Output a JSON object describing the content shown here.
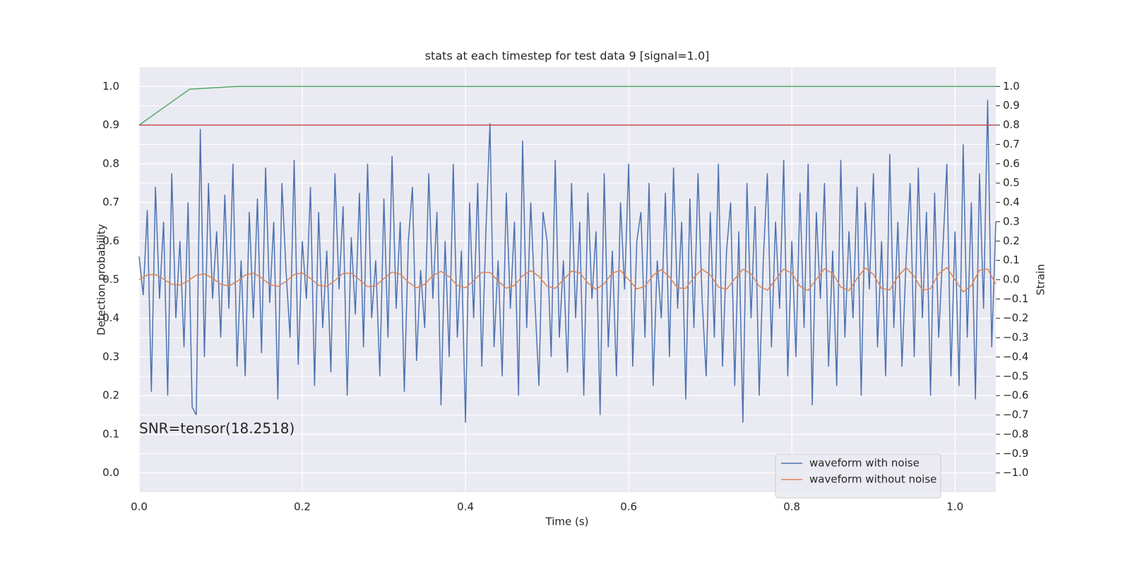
{
  "chart_data": {
    "type": "line",
    "title": "stats at each timestep for test data 9 [signal=1.0]",
    "xlabel": "Time (s)",
    "ylabel": "Detection probability",
    "y2label": "Strain",
    "annotation": "SNR=tensor(18.2518)",
    "grid": true,
    "legend": "lower right",
    "xlim": [
      0,
      1.05
    ],
    "xticks": [
      {
        "value": 0,
        "label": "0.0"
      },
      0.2,
      0.4,
      0.6,
      0.8,
      {
        "value": 1,
        "label": "1.0"
      }
    ],
    "ylim": [
      -0.05,
      1.05
    ],
    "yticks": [
      {
        "value": 0,
        "label": "0.0"
      },
      0.1,
      0.2,
      0.3,
      0.4,
      0.5,
      0.6,
      0.7,
      0.8,
      0.9,
      {
        "value": 1,
        "label": "1.0"
      }
    ],
    "y2lim": [
      -1.1,
      1.1
    ],
    "y2ticks": [
      {
        "value": -1,
        "label": "−1.0"
      },
      {
        "value": -0.9,
        "label": "−0.9"
      },
      {
        "value": -0.8,
        "label": "−0.8"
      },
      {
        "value": -0.7,
        "label": "−0.7"
      },
      {
        "value": -0.6,
        "label": "−0.6"
      },
      {
        "value": -0.5,
        "label": "−0.5"
      },
      {
        "value": -0.4,
        "label": "−0.4"
      },
      {
        "value": -0.3,
        "label": "−0.3"
      },
      {
        "value": -0.2,
        "label": "−0.2"
      },
      {
        "value": -0.1,
        "label": "−0.1"
      },
      {
        "value": 0,
        "label": "0.0"
      },
      0.1,
      0.2,
      0.3,
      0.4,
      0.5,
      0.6,
      0.7,
      0.8,
      0.9,
      {
        "value": 1,
        "label": "1.0"
      }
    ],
    "series": [
      {
        "name": "waveform with noise",
        "color": "#4c72b0",
        "axis": "y2",
        "x": [
          0,
          0.005,
          0.01,
          0.015,
          0.02,
          0.025,
          0.03,
          0.035,
          0.04,
          0.045,
          0.05,
          0.055,
          0.06,
          0.065,
          0.07,
          0.075,
          0.08,
          0.085,
          0.09,
          0.095,
          0.1,
          0.105,
          0.11,
          0.115,
          0.12,
          0.125,
          0.13,
          0.135,
          0.14,
          0.145,
          0.15,
          0.155,
          0.16,
          0.165,
          0.17,
          0.175,
          0.18,
          0.185,
          0.19,
          0.195,
          0.2,
          0.205,
          0.21,
          0.215,
          0.22,
          0.225,
          0.23,
          0.235,
          0.24,
          0.245,
          0.25,
          0.255,
          0.26,
          0.265,
          0.27,
          0.275,
          0.28,
          0.285,
          0.29,
          0.295,
          0.3,
          0.305,
          0.31,
          0.315,
          0.32,
          0.325,
          0.33,
          0.335,
          0.34,
          0.345,
          0.35,
          0.355,
          0.36,
          0.365,
          0.37,
          0.375,
          0.38,
          0.385,
          0.39,
          0.395,
          0.4,
          0.405,
          0.41,
          0.415,
          0.42,
          0.425,
          0.43,
          0.435,
          0.44,
          0.445,
          0.45,
          0.455,
          0.46,
          0.465,
          0.47,
          0.475,
          0.48,
          0.485,
          0.49,
          0.495,
          0.5,
          0.505,
          0.51,
          0.515,
          0.52,
          0.525,
          0.53,
          0.535,
          0.54,
          0.545,
          0.55,
          0.555,
          0.56,
          0.565,
          0.57,
          0.575,
          0.58,
          0.585,
          0.59,
          0.595,
          0.6,
          0.605,
          0.61,
          0.615,
          0.62,
          0.625,
          0.63,
          0.635,
          0.64,
          0.645,
          0.65,
          0.655,
          0.66,
          0.665,
          0.67,
          0.675,
          0.68,
          0.685,
          0.69,
          0.695,
          0.7,
          0.705,
          0.71,
          0.715,
          0.72,
          0.725,
          0.73,
          0.735,
          0.74,
          0.745,
          0.75,
          0.755,
          0.76,
          0.765,
          0.77,
          0.775,
          0.78,
          0.785,
          0.79,
          0.795,
          0.8,
          0.805,
          0.81,
          0.815,
          0.82,
          0.825,
          0.83,
          0.835,
          0.84,
          0.845,
          0.85,
          0.855,
          0.86,
          0.865,
          0.87,
          0.875,
          0.88,
          0.885,
          0.89,
          0.895,
          0.9,
          0.905,
          0.91,
          0.915,
          0.92,
          0.925,
          0.93,
          0.935,
          0.94,
          0.945,
          0.95,
          0.955,
          0.96,
          0.965,
          0.97,
          0.975,
          0.98,
          0.985,
          0.99,
          0.995,
          1,
          1.005,
          1.01,
          1.015,
          1.02,
          1.025,
          1.03,
          1.035,
          1.04,
          1.045,
          1.05
        ],
        "values": [
          0.12,
          -0.08,
          0.36,
          -0.58,
          0.48,
          -0.1,
          0.3,
          -0.6,
          0.55,
          -0.2,
          0.2,
          -0.35,
          0.4,
          -0.66,
          -0.7,
          0.78,
          -0.4,
          0.5,
          -0.1,
          0.25,
          -0.3,
          0.44,
          -0.15,
          0.6,
          -0.45,
          0.1,
          -0.5,
          0.35,
          -0.2,
          0.42,
          -0.38,
          0.58,
          -0.12,
          0.3,
          -0.62,
          0.5,
          0.05,
          -0.3,
          0.62,
          -0.44,
          0.2,
          -0.1,
          0.48,
          -0.55,
          0.35,
          -0.25,
          0.15,
          -0.48,
          0.55,
          -0.05,
          0.38,
          -0.6,
          0.22,
          -0.18,
          0.45,
          -0.35,
          0.6,
          -0.2,
          0.1,
          -0.5,
          0.42,
          -0.3,
          0.64,
          -0.15,
          0.3,
          -0.58,
          0.2,
          0.48,
          -0.42,
          0.05,
          -0.25,
          0.55,
          -0.1,
          0.35,
          -0.65,
          0.2,
          -0.4,
          0.6,
          -0.3,
          0.15,
          -0.74,
          0.4,
          -0.2,
          0.5,
          -0.45,
          0.25,
          0.81,
          -0.35,
          0.1,
          -0.5,
          0.45,
          -0.15,
          0.3,
          -0.6,
          0.72,
          -0.25,
          0.4,
          -0.1,
          -0.55,
          0.35,
          0.2,
          -0.4,
          0.62,
          -0.3,
          0.1,
          -0.48,
          0.5,
          -0.2,
          0.3,
          -0.6,
          0.45,
          -0.1,
          0.25,
          -0.7,
          0.55,
          -0.35,
          0.15,
          -0.5,
          0.4,
          -0.05,
          0.6,
          -0.45,
          0.2,
          0.35,
          -0.3,
          0.5,
          -0.55,
          0.1,
          -0.2,
          0.45,
          -0.4,
          0.58,
          -0.15,
          0.3,
          -0.62,
          0.42,
          -0.25,
          0.55,
          -0.1,
          -0.5,
          0.35,
          -0.3,
          0.6,
          -0.45,
          0.15,
          0.4,
          -0.55,
          0.25,
          -0.74,
          0.5,
          -0.2,
          0.38,
          -0.6,
          0.1,
          0.55,
          -0.35,
          0.3,
          -0.15,
          0.62,
          -0.5,
          0.2,
          -0.4,
          0.45,
          -0.25,
          0.6,
          -0.65,
          0.35,
          -0.1,
          0.5,
          -0.45,
          0.15,
          -0.55,
          0.62,
          -0.3,
          0.25,
          -0.2,
          0.48,
          -0.6,
          0.4,
          -0.05,
          0.55,
          -0.35,
          0.2,
          -0.5,
          0.65,
          -0.25,
          0.3,
          -0.45,
          0.1,
          0.5,
          -0.4,
          0.58,
          -0.2,
          0.35,
          -0.6,
          0.45,
          -0.3,
          0.15,
          0.6,
          -0.5,
          0.25,
          -0.55,
          0.7,
          -0.3,
          0.4,
          -0.62,
          0.55,
          -0.15,
          0.93,
          -0.35,
          0.3
        ]
      },
      {
        "name": "waveform without noise",
        "color": "#dd8452",
        "axis": "y2",
        "x": [
          0,
          0.01,
          0.02,
          0.03,
          0.04,
          0.05,
          0.06,
          0.07,
          0.08,
          0.09,
          0.1,
          0.11,
          0.12,
          0.13,
          0.14,
          0.15,
          0.16,
          0.17,
          0.18,
          0.19,
          0.2,
          0.21,
          0.22,
          0.23,
          0.24,
          0.25,
          0.26,
          0.27,
          0.28,
          0.29,
          0.3,
          0.31,
          0.32,
          0.33,
          0.34,
          0.35,
          0.36,
          0.37,
          0.38,
          0.39,
          0.4,
          0.41,
          0.42,
          0.43,
          0.44,
          0.45,
          0.46,
          0.47,
          0.48,
          0.49,
          0.5,
          0.51,
          0.52,
          0.53,
          0.54,
          0.55,
          0.56,
          0.57,
          0.58,
          0.59,
          0.6,
          0.61,
          0.62,
          0.63,
          0.64,
          0.65,
          0.66,
          0.67,
          0.68,
          0.69,
          0.7,
          0.71,
          0.72,
          0.73,
          0.74,
          0.75,
          0.76,
          0.77,
          0.78,
          0.79,
          0.8,
          0.81,
          0.82,
          0.83,
          0.84,
          0.85,
          0.86,
          0.87,
          0.88,
          0.89,
          0.9,
          0.91,
          0.92,
          0.93,
          0.94,
          0.95,
          0.96,
          0.97,
          0.98,
          0.99,
          1,
          1.01,
          1.02,
          1.03,
          1.04,
          1.05
        ],
        "values": [
          0,
          0.025,
          0.027,
          0.003,
          -0.024,
          -0.028,
          -0.006,
          0.023,
          0.03,
          0.008,
          -0.024,
          -0.033,
          -0.009,
          0.024,
          0.034,
          0.01,
          -0.025,
          -0.035,
          -0.009,
          0.027,
          0.035,
          0.007,
          -0.029,
          -0.035,
          -0.004,
          0.032,
          0.034,
          0,
          -0.036,
          -0.032,
          0.006,
          0.039,
          0.029,
          -0.013,
          -0.042,
          -0.024,
          0.021,
          0.043,
          0.016,
          -0.03,
          -0.042,
          -0.006,
          0.038,
          0.038,
          -0.007,
          -0.044,
          -0.03,
          0.02,
          0.047,
          0.017,
          -0.034,
          -0.045,
          -0.001,
          0.044,
          0.036,
          -0.017,
          -0.05,
          -0.021,
          0.035,
          0.047,
          0,
          -0.048,
          -0.035,
          0.023,
          0.052,
          0.014,
          -0.043,
          -0.045,
          0.012,
          0.054,
          0.025,
          -0.038,
          -0.05,
          0.004,
          0.054,
          0.031,
          -0.034,
          -0.054,
          0,
          0.055,
          0.034,
          -0.034,
          -0.056,
          0.001,
          0.057,
          0.033,
          -0.038,
          -0.056,
          0.006,
          0.06,
          0.028,
          -0.045,
          -0.053,
          0.016,
          0.063,
          0.017,
          -0.055,
          -0.046,
          0.031,
          0.063,
          0,
          -0.063,
          -0.031,
          0.049,
          0.055,
          -0.023
        ]
      },
      {
        "color": "#55a868",
        "x": [
          0,
          0.062,
          0.12,
          1.05
        ],
        "values": [
          0.9,
          0.993,
          1.0,
          1.0
        ]
      },
      {
        "color": "#c44e52",
        "x": [
          0,
          1.05
        ],
        "values": [
          0.9,
          0.9
        ]
      }
    ]
  }
}
